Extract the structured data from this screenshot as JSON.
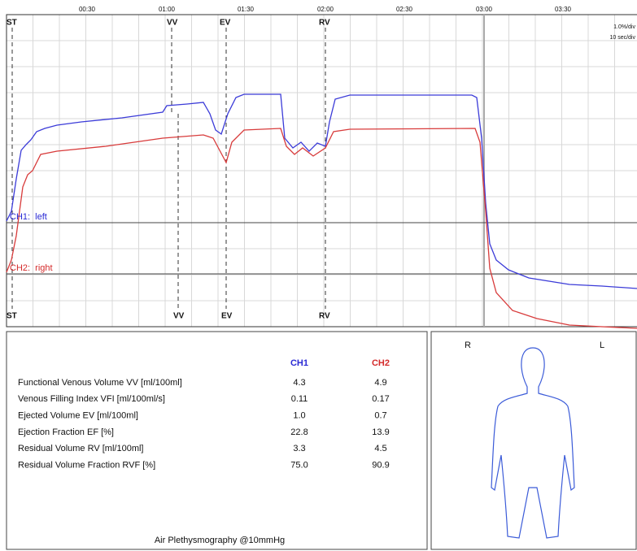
{
  "graph": {
    "time_labels": [
      "00:30",
      "01:00",
      "01:30",
      "02:00",
      "02:30",
      "03:00",
      "03:30"
    ],
    "scale": [
      "1.0%/div",
      "10 sec/div"
    ],
    "markers_top": [
      "ST",
      "VV",
      "EV",
      "RV"
    ],
    "markers_bottom": [
      "ST",
      "VV",
      "EV",
      "RV"
    ],
    "channels": [
      "CH1:  left",
      "CH2:  right"
    ]
  },
  "table": {
    "columns": [
      "CH1",
      "CH2"
    ],
    "rows": [
      [
        "Functional Venous Volume VV [ml/100ml]",
        "4.3",
        "4.9"
      ],
      [
        "Venous Filling Index VFI [ml/100ml/s]",
        "0.11",
        "0.17"
      ],
      [
        "Ejected Volume EV [ml/100ml]",
        "1.0",
        "0.7"
      ],
      [
        "Ejection Fraction EF [%]",
        "22.8",
        "13.9"
      ],
      [
        "Residual Volume RV [ml/100ml]",
        "3.3",
        "4.5"
      ],
      [
        "Residual Volume Fraction RVF [%]",
        "75.0",
        "90.9"
      ]
    ]
  },
  "body": {
    "labels": [
      "R",
      "L"
    ]
  },
  "footer": "Air Plethysmography @10mmHg"
}
